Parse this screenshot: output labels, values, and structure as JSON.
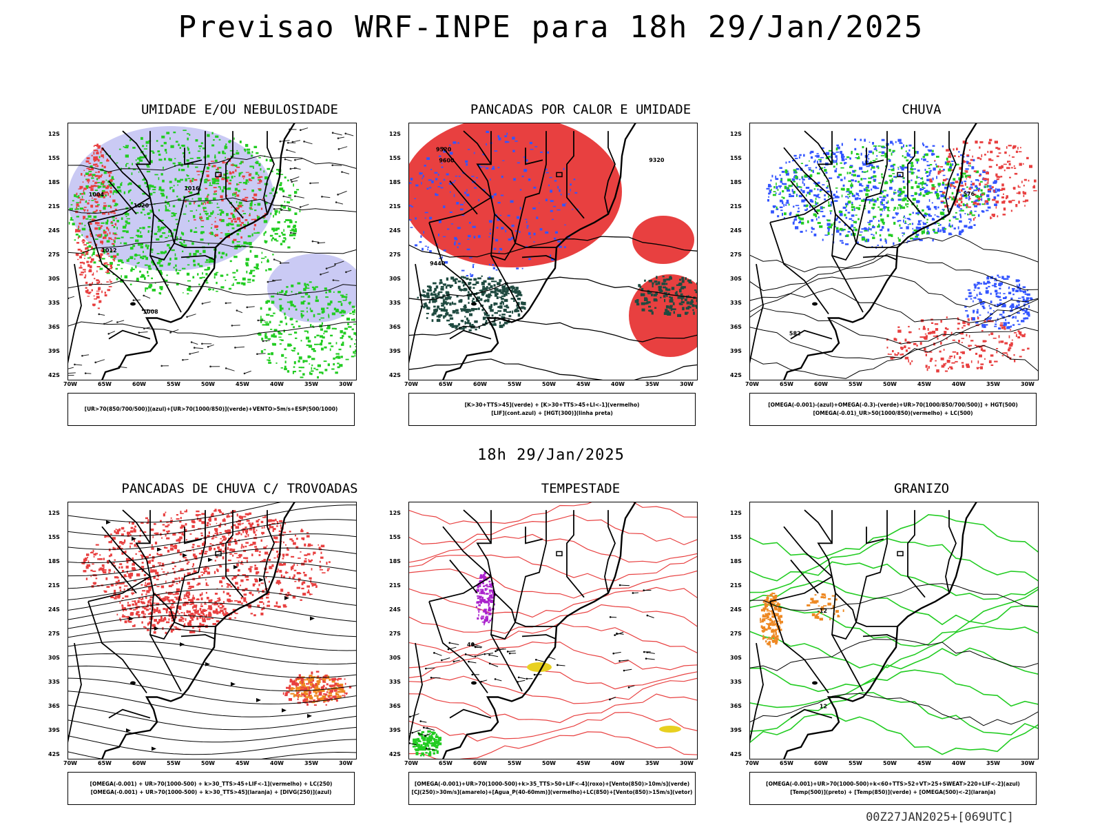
{
  "title": "Previsao WRF-INPE  para 18h 29/Jan/2025",
  "mid_title": "18h 29/Jan/2025",
  "footer_code": "00Z27JAN2025+[069UTC]",
  "lat_ticks": [
    "12S",
    "15S",
    "18S",
    "21S",
    "24S",
    "27S",
    "30S",
    "33S",
    "36S",
    "39S",
    "42S"
  ],
  "lon_ticks": [
    "70W",
    "65W",
    "60W",
    "55W",
    "50W",
    "45W",
    "40W",
    "35W",
    "30W"
  ],
  "colors": {
    "red": "#e84040",
    "green": "#22cc22",
    "blue": "#3355ff",
    "lavender": "#b8b8f0",
    "darkteal": "#1f4a40",
    "orange": "#ee8822",
    "purple": "#aa22cc",
    "yellow": "#e8d020"
  },
  "panels": [
    {
      "title": "UMIDADE E/OU NEBULOSIDADE",
      "legend": [
        "[UR>70(850/700/500)](azul)+[UR>70(1000/850)](verde)+VENTO>5m/s+ESP(500/1000)"
      ],
      "contour_labels": [
        "1004",
        "1008",
        "1012",
        "1016",
        "1020"
      ]
    },
    {
      "title": "PANCADAS POR CALOR E UMIDADE",
      "legend": [
        "[K>30+TTS>45](verde) + [K>30+TTS>45+LI<-1](vermelho)",
        "[LIF](cont.azul) + [HGT(300)](linha preta)"
      ],
      "contour_labels": [
        "9600",
        "9520",
        "9440",
        "9320"
      ]
    },
    {
      "title": "CHUVA",
      "legend": [
        "[OMEGA(-0.001)-(azul)+OMEGA(-0.3)-(verde)+UR>70(1000/850/700/500)] + HGT(500)",
        "[OMEGA(-0.01)_UR>50(1000/850)(vermelho) + LC(500)"
      ],
      "contour_labels": [
        "582",
        "576"
      ]
    },
    {
      "title": "PANCADAS DE CHUVA C/ TROVOADAS",
      "legend": [
        "[OMEGA(-0.001) + UR>70(1000-500) + k>30_TTS>45+LIF<-1](vermelho) + LC(250)",
        "[OMEGA(-0.001) + UR>70(1000-500) + k>30_TTS>45](laranja) + [DIVG(250)](azul)"
      ],
      "contour_labels": []
    },
    {
      "title": "TEMPESTADE",
      "legend": [
        "[OMEGA(-0.001)+UR>70(1000-500)+k>35_TTS>50+LIF<-4](roxo)+[Vento(850)>10m/s](verde)",
        "[CJ(250)>30m/s](amarelo)+[Agua_P(40-60mm)](vermelho)+LC(850)+[Vento(850)>15m/s](vetor)"
      ],
      "contour_labels": [
        "40"
      ]
    },
    {
      "title": "GRANIZO",
      "legend": [
        "[OMEGA(-0.001)+UR>70(1000-500)+k<60+TTS>52+VT>25+SWEAT>220+LIF<-2](azul)",
        "[Temp(500)](preto) + [Temp(850)](verde) + [OMEGA(500)<-2](laranja)"
      ],
      "contour_labels": [
        "-12",
        "12"
      ]
    }
  ]
}
